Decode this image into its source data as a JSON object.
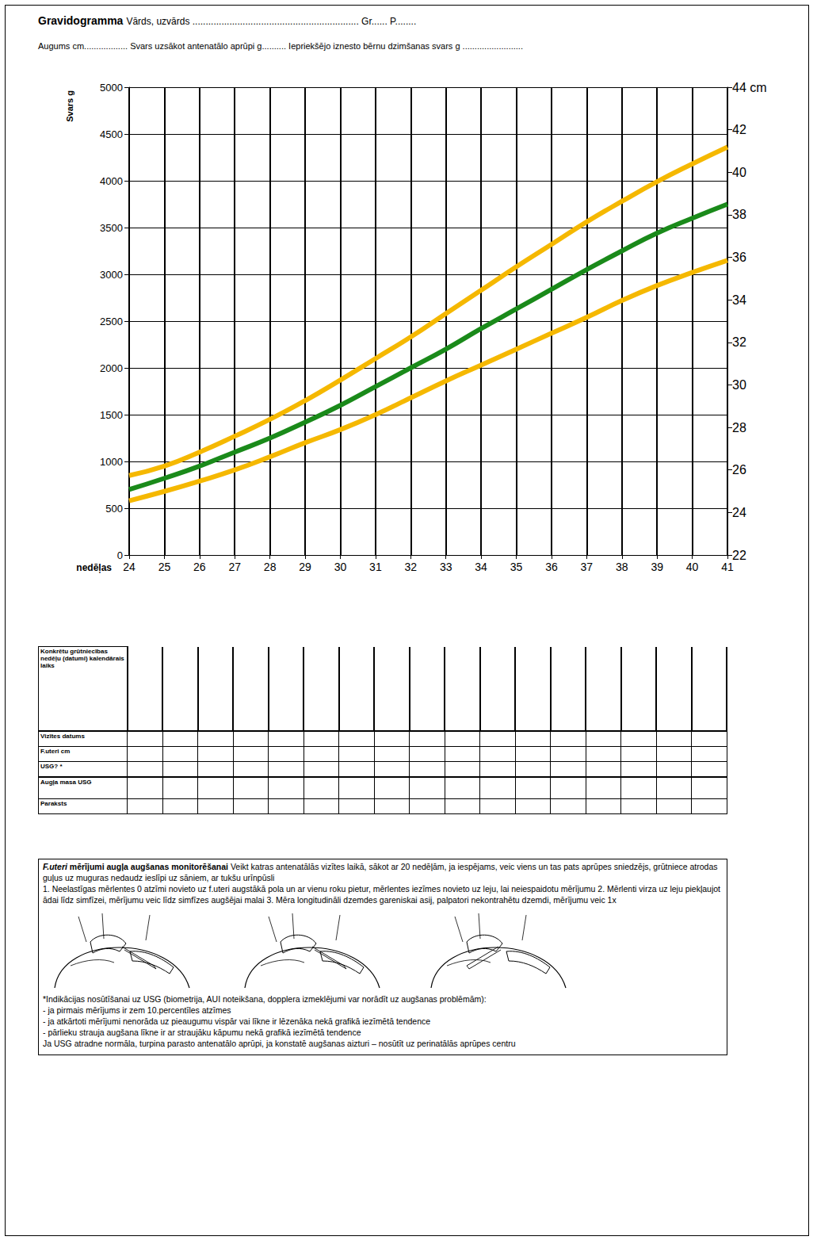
{
  "header": {
    "title": "Gravidogramma",
    "line1": "Vārds, uzvārds ............................................................... Gr...... P........",
    "line2": "Augums cm.................. Svars uzsākot antenatālo aprūpi g.......... Iepriekšējo iznesto bērnu dzimšanas svars g ........................."
  },
  "chart_data": {
    "type": "line",
    "x_label": "nedēļas",
    "y_label": "Svars g",
    "x": [
      24,
      25,
      26,
      27,
      28,
      29,
      30,
      31,
      32,
      33,
      34,
      35,
      36,
      37,
      38,
      39,
      40,
      41
    ],
    "series": [
      {
        "color": "#f5b800",
        "marker": "none",
        "line_style": "solid",
        "values": [
          850,
          950,
          1100,
          1270,
          1450,
          1650,
          1870,
          2100,
          2330,
          2580,
          2830,
          3080,
          3320,
          3560,
          3780,
          3990,
          4180,
          4360
        ]
      },
      {
        "color": "#1a8a1a",
        "marker": "none",
        "line_style": "solid",
        "values": [
          700,
          820,
          950,
          1100,
          1250,
          1420,
          1600,
          1800,
          2000,
          2200,
          2420,
          2630,
          2840,
          3050,
          3250,
          3440,
          3600,
          3750
        ]
      },
      {
        "color": "#f5b800",
        "marker": "none",
        "line_style": "solid",
        "values": [
          580,
          680,
          790,
          910,
          1050,
          1200,
          1340,
          1500,
          1680,
          1860,
          2030,
          2200,
          2370,
          2540,
          2720,
          2880,
          3020,
          3150
        ]
      }
    ],
    "xlim": [
      24,
      41
    ],
    "xticks": [
      24,
      25,
      26,
      27,
      28,
      29,
      30,
      31,
      32,
      33,
      34,
      35,
      36,
      37,
      38,
      39,
      40,
      41
    ],
    "ylim": [
      0,
      5000
    ],
    "yticks": [
      0,
      500,
      1000,
      1500,
      2000,
      2500,
      3000,
      3500,
      4000,
      4500,
      5000
    ],
    "y2lim": [
      22,
      44
    ],
    "y2ticks": [
      22,
      24,
      26,
      28,
      30,
      32,
      34,
      36,
      38,
      40,
      42,
      {
        "value": 44,
        "label": "44 cm"
      }
    ],
    "grid": true
  },
  "table": {
    "rows": [
      "Konkrētu grūtniecības nedēļu (datumi) kalendārais laiks",
      "Vizītes datums",
      "F.uteri cm",
      "USG? *",
      "Augļa masa USG",
      "Paraksts"
    ]
  },
  "instructions": {
    "title": "F.uteri mērījumi augļa augšanas monitorēšanai",
    "intro": "Veikt katras antenatālās vizītes laikā, sākot ar 20 nedēļām, ja iespējams, veic viens un tas pats aprūpes sniedzējs, grūtniece atrodas guļus uz muguras nedaudz ieslīpi uz sāniem, ar tukšu urīnpūsli",
    "steps": "1. Neelastīgas mērlentes 0 atzīmi novieto uz f.uteri augstākā pola un ar vienu roku pietur, mērlentes iezīmes novieto uz leju, lai neiespaidotu mērījumu 2. Mērlenti virza uz leju piekļaujot ādai līdz simfīzei, mērījumu veic līdz simfīzes augšējai malai 3. Mēra longitudināli dzemdes gareniskai asij, palpatori nekontrahētu dzemdi, mērījumu veic 1x",
    "usg_title": "*Indikācijas nosūtīšanai uz USG (biometrija, AUI noteikšana, dopplera izmeklējumi var norādīt uz augšanas problēmām):",
    "usg_items": [
      "- ja pirmais mērījums ir zem 10.percentīles atzīmes",
      "- ja atkārtoti mērījumi nenorāda uz pieaugumu vispār vai līkne ir lēzenāka nekā grafikā iezīmētā tendence",
      "- pārlieku strauja augšana līkne ir ar straujāku kāpumu nekā grafikā iezīmētā tendence"
    ],
    "conclusion": "Ja USG atradne normāla, turpina parasto antenatālo aprūpi, ja konstatē augšanas aizturi – nosūtīt uz perinatālās aprūpes centru"
  }
}
